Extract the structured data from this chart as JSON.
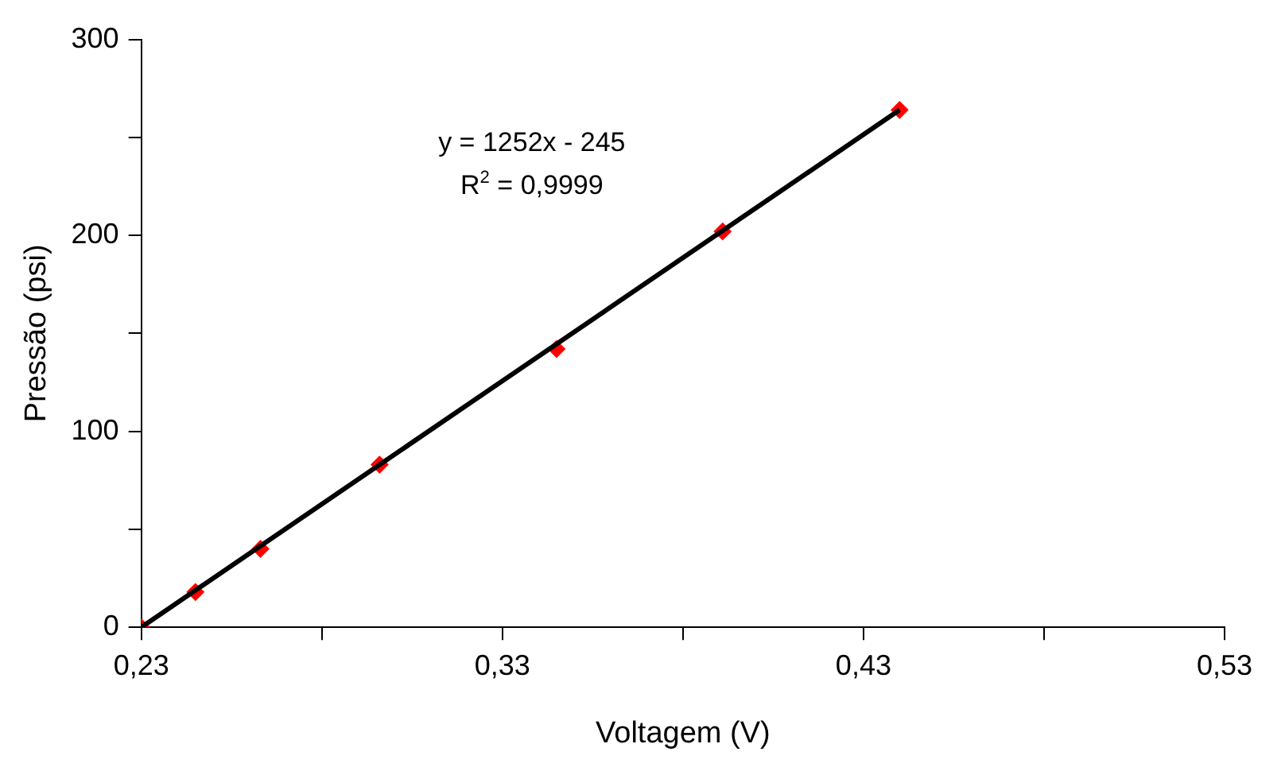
{
  "chart_data": {
    "type": "scatter",
    "xlabel": "Voltagem (V)",
    "ylabel": "Pressão (psi)",
    "annotations": [
      "y = 1252x - 245",
      "R$^{2}$ = 0,9999"
    ],
    "xlim": [
      0.23,
      0.53
    ],
    "xticks": [
      {
        "value": 0.23,
        "label": "0,23"
      },
      {
        "value": 0.28,
        "label": null
      },
      {
        "value": 0.33,
        "label": "0,33"
      },
      {
        "value": 0.38,
        "label": null
      },
      {
        "value": 0.43,
        "label": "0,43"
      },
      {
        "value": 0.48,
        "label": null
      },
      {
        "value": 0.53,
        "label": "0,53"
      }
    ],
    "ylim": [
      0,
      300
    ],
    "yticks": [
      0,
      {
        "value": 50,
        "label": null
      },
      100,
      {
        "value": 150,
        "label": null
      },
      200,
      {
        "value": 250,
        "label": null
      },
      300
    ],
    "grid": false,
    "legend": false,
    "marker": "diamond",
    "series": [
      {
        "type": "line",
        "color": "#000000",
        "line_style": "solid",
        "marker": "none",
        "x": [
          0.23,
          0.44
        ],
        "values": [
          0,
          264
        ]
      },
      {
        "type": "scatter",
        "color": "#ff0000",
        "x": [
          0.23,
          0.245,
          0.263,
          0.296,
          0.345,
          0.391,
          0.44
        ],
        "values": [
          0,
          18,
          40,
          83,
          142,
          202,
          264
        ]
      }
    ]
  }
}
